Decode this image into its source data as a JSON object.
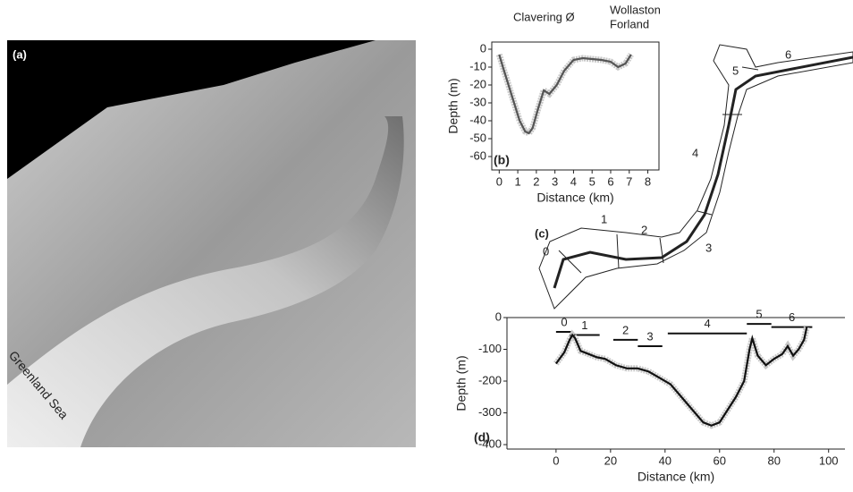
{
  "panel_a": {
    "label": "(a)",
    "annotation": "Greenland Sea"
  },
  "panel_c": {
    "label": "(c)",
    "segments": [
      "0",
      "1",
      "2",
      "3",
      "4",
      "5",
      "6"
    ]
  },
  "chart_data": [
    {
      "type": "line",
      "label": "(b)",
      "annotations": [
        "Clavering Ø",
        "Wollaston",
        "Forland"
      ],
      "x_label": "Distance (km)",
      "y_label": "Depth (m)",
      "x": [
        0,
        0.2,
        0.5,
        0.8,
        1.1,
        1.4,
        1.6,
        1.8,
        2.1,
        2.4,
        2.7,
        3.1,
        3.5,
        4,
        4.5,
        5.5,
        6,
        6.4,
        6.8,
        7.1
      ],
      "values": [
        -3,
        -10,
        -20,
        -30,
        -40,
        -46,
        -47,
        -44,
        -33,
        -23,
        -25,
        -20,
        -12,
        -6,
        -5,
        -6,
        -7,
        -10,
        -8,
        -3
      ],
      "color": "#555555",
      "xlim": [
        -0.4,
        8.6
      ],
      "ylim": [
        -67.5,
        4
      ],
      "xticks": [
        0,
        1,
        2,
        3,
        4,
        5,
        6,
        7,
        8
      ],
      "yticks": [
        0,
        -10,
        -20,
        -30,
        -40,
        -50,
        -60
      ]
    },
    {
      "type": "line",
      "label": "(d)",
      "x_label": "Distance (km)",
      "y_label": "Depth (m)",
      "x": [
        0,
        3,
        5,
        6,
        7,
        9,
        12,
        15,
        18,
        22,
        26,
        30,
        34,
        38,
        42,
        46,
        50,
        54,
        57,
        60,
        63,
        66,
        69,
        71,
        72,
        74,
        77,
        80,
        83,
        85,
        87,
        89,
        91,
        92
      ],
      "values": [
        -145,
        -110,
        -70,
        -55,
        -65,
        -105,
        -115,
        -125,
        -130,
        -150,
        -160,
        -160,
        -170,
        -190,
        -210,
        -250,
        -290,
        -330,
        -340,
        -330,
        -290,
        -250,
        -200,
        -100,
        -65,
        -120,
        -150,
        -130,
        -115,
        -90,
        -120,
        -100,
        -70,
        -30
      ],
      "color": "#111111",
      "xlim": [
        -18,
        106
      ],
      "ylim": [
        -414,
        0
      ],
      "xticks": [
        0,
        20,
        40,
        60,
        80,
        100
      ],
      "yticks": [
        0,
        -100,
        -200,
        -300,
        -400
      ],
      "segments": [
        {
          "label": "0",
          "x": [
            0,
            6
          ],
          "y": -45
        },
        {
          "label": "1",
          "x": [
            5,
            16
          ],
          "y": -55
        },
        {
          "label": "2",
          "x": [
            21,
            30
          ],
          "y": -70
        },
        {
          "label": "3",
          "x": [
            30,
            39
          ],
          "y": -90
        },
        {
          "label": "4",
          "x": [
            41,
            70
          ],
          "y": -50
        },
        {
          "label": "5",
          "x": [
            70,
            79
          ],
          "y": -20
        },
        {
          "label": "6",
          "x": [
            79,
            94
          ],
          "y": -30
        }
      ]
    }
  ]
}
